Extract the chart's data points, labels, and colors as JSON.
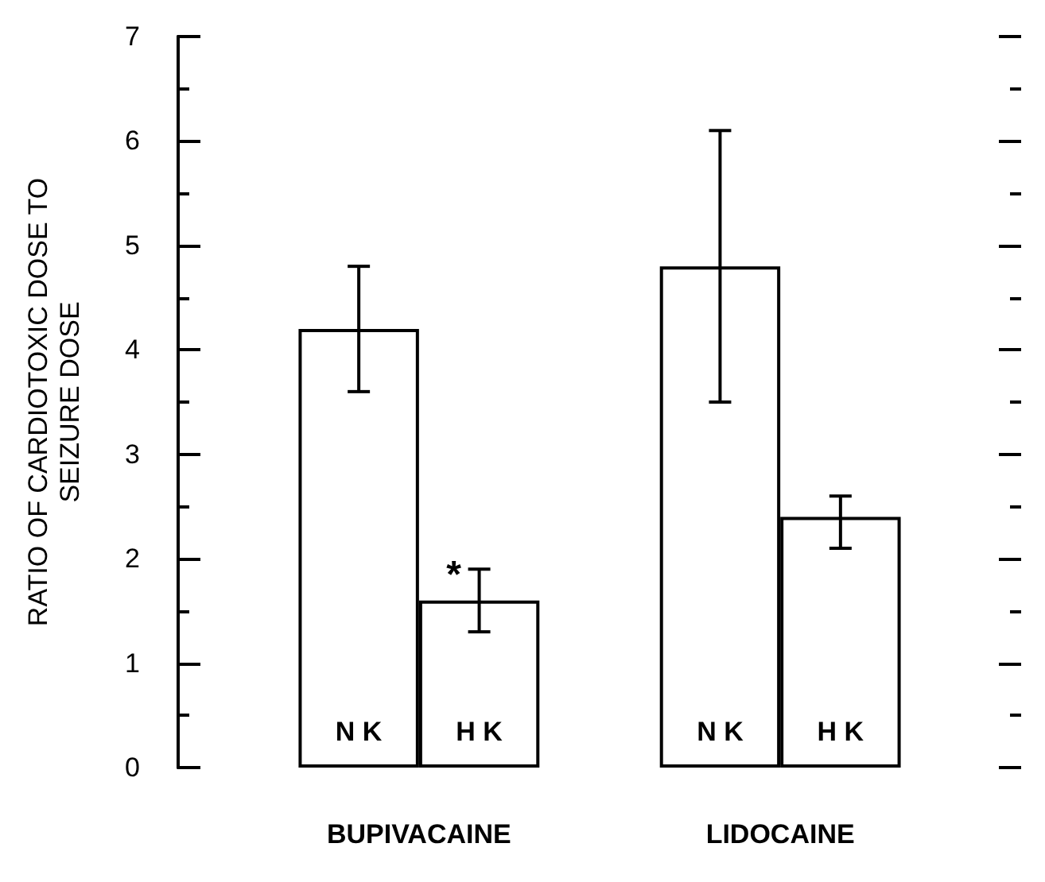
{
  "chart_data": {
    "type": "bar",
    "ylabel": "RATIO OF CARDIOTOXIC DOSE TO\nSEIZURE DOSE",
    "categories": [
      null,
      "N K",
      "H K",
      null,
      "N K",
      "H K",
      null
    ],
    "values": [
      null,
      4.2,
      1.6,
      null,
      4.8,
      2.4,
      null
    ],
    "errors": [
      null,
      [
        3.6,
        4.8
      ],
      [
        1.3,
        1.9
      ],
      null,
      [
        3.5,
        6.1
      ],
      [
        2.1,
        2.6
      ],
      null
    ],
    "color": "#ffffff",
    "ylim": [
      0,
      7
    ],
    "yticks": [
      0,
      {
        "value": 0.5,
        "label": null
      },
      1,
      {
        "value": 1.5,
        "label": null
      },
      2,
      {
        "value": 2.5,
        "label": null
      },
      3,
      {
        "value": 3.5,
        "label": null
      },
      4,
      {
        "value": 4.5,
        "label": null
      },
      5,
      {
        "value": 5.5,
        "label": null
      },
      6,
      {
        "value": 6.5,
        "label": null
      },
      7
    ],
    "grid": false,
    "annotations": [
      "BUPIVACAINE",
      "LIDOCAINE",
      {
        "text": "*",
        "x": "H K",
        "y": 1.9
      }
    ]
  }
}
